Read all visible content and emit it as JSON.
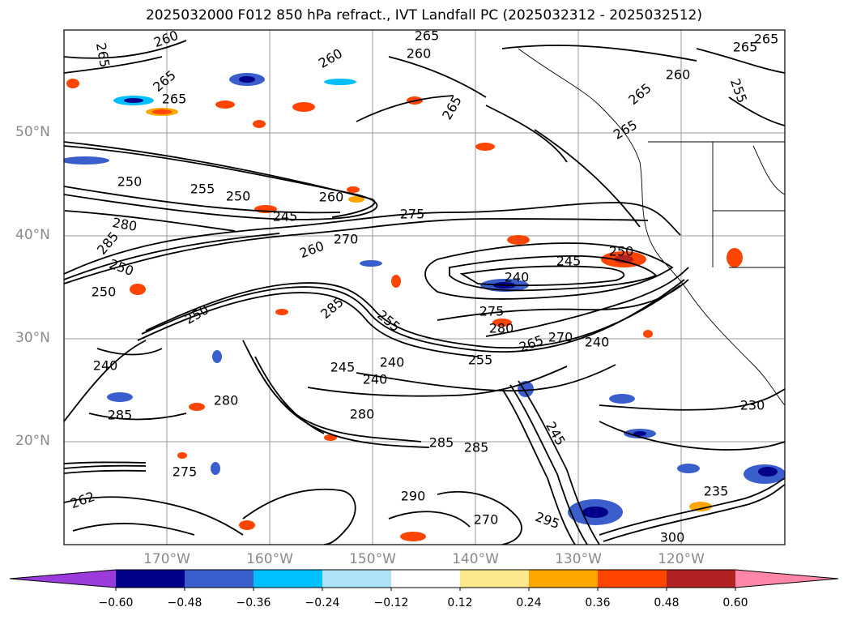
{
  "title": "2025032000 F012 850 hPa refract., IVT Landfall PC (2025032312 - 2025032512)",
  "lat_labels": [
    "50°N",
    "40°N",
    "30°N",
    "20°N"
  ],
  "lon_labels": [
    "170°W",
    "160°W",
    "150°W",
    "140°W",
    "130°W",
    "120°W"
  ],
  "contour_labels": [
    "260",
    "265",
    "260",
    "265",
    "265",
    "265",
    "260",
    "265",
    "265",
    "265",
    "255",
    "260",
    "265",
    "265",
    "250",
    "255",
    "250",
    "260",
    "245",
    "275",
    "280",
    "285",
    "270",
    "260",
    "250",
    "250",
    "240",
    "245",
    "250",
    "250",
    "285",
    "255",
    "275",
    "280",
    "265",
    "270",
    "240",
    "240",
    "255",
    "245",
    "240",
    "280",
    "285",
    "280",
    "285",
    "285",
    "245",
    "230",
    "240",
    "235",
    "262",
    "270",
    "290",
    "295",
    "300",
    "275"
  ],
  "colorbar": {
    "ticks": [
      "−0.60",
      "−0.48",
      "−0.36",
      "−0.24",
      "−0.12",
      "0.12",
      "0.24",
      "0.36",
      "0.48",
      "0.60"
    ],
    "colors": [
      "#9b3bdc",
      "#00008b",
      "#3a5fcd",
      "#00bfff",
      "#aee3f7",
      "#ffffff",
      "#fde88d",
      "#ffa500",
      "#ff4500",
      "#b22222",
      "#ff86a8"
    ]
  }
}
